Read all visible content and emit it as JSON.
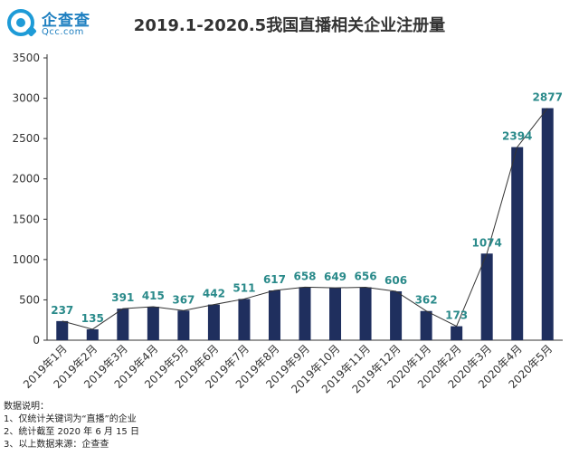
{
  "logo": {
    "name": "企查查",
    "domain": "Qcc.com"
  },
  "chart_data": {
    "type": "bar",
    "title": "2019.1-2020.5我国直播相关企业注册量",
    "categories": [
      "2019年1月",
      "2019年2月",
      "2019年3月",
      "2019年4月",
      "2019年5月",
      "2019年6月",
      "2019年7月",
      "2019年8月",
      "2019年9月",
      "2019年10月",
      "2019年11月",
      "2019年12月",
      "2020年1月",
      "2020年2月",
      "2020年3月",
      "2020年4月",
      "2020年5月"
    ],
    "values": [
      237,
      135,
      391,
      415,
      367,
      442,
      511,
      617,
      658,
      649,
      656,
      606,
      362,
      173,
      1074,
      2394,
      2877
    ],
    "ylim": [
      0,
      3500
    ],
    "yticks": [
      0,
      500,
      1000,
      1500,
      2000,
      2500,
      3000,
      3500
    ],
    "trend_line": true,
    "grid": false,
    "colors": {
      "bar": "#1f2f5e",
      "label": "#2a8a8a",
      "line": "#333333",
      "axis": "#333333"
    }
  },
  "notes": {
    "heading": "数据说明：",
    "lines": [
      "1、仅统计关键词为“直播”的企业",
      "2、统计截至 2020 年 6 月 15 日",
      "3、以上数据来源：企查查"
    ]
  }
}
